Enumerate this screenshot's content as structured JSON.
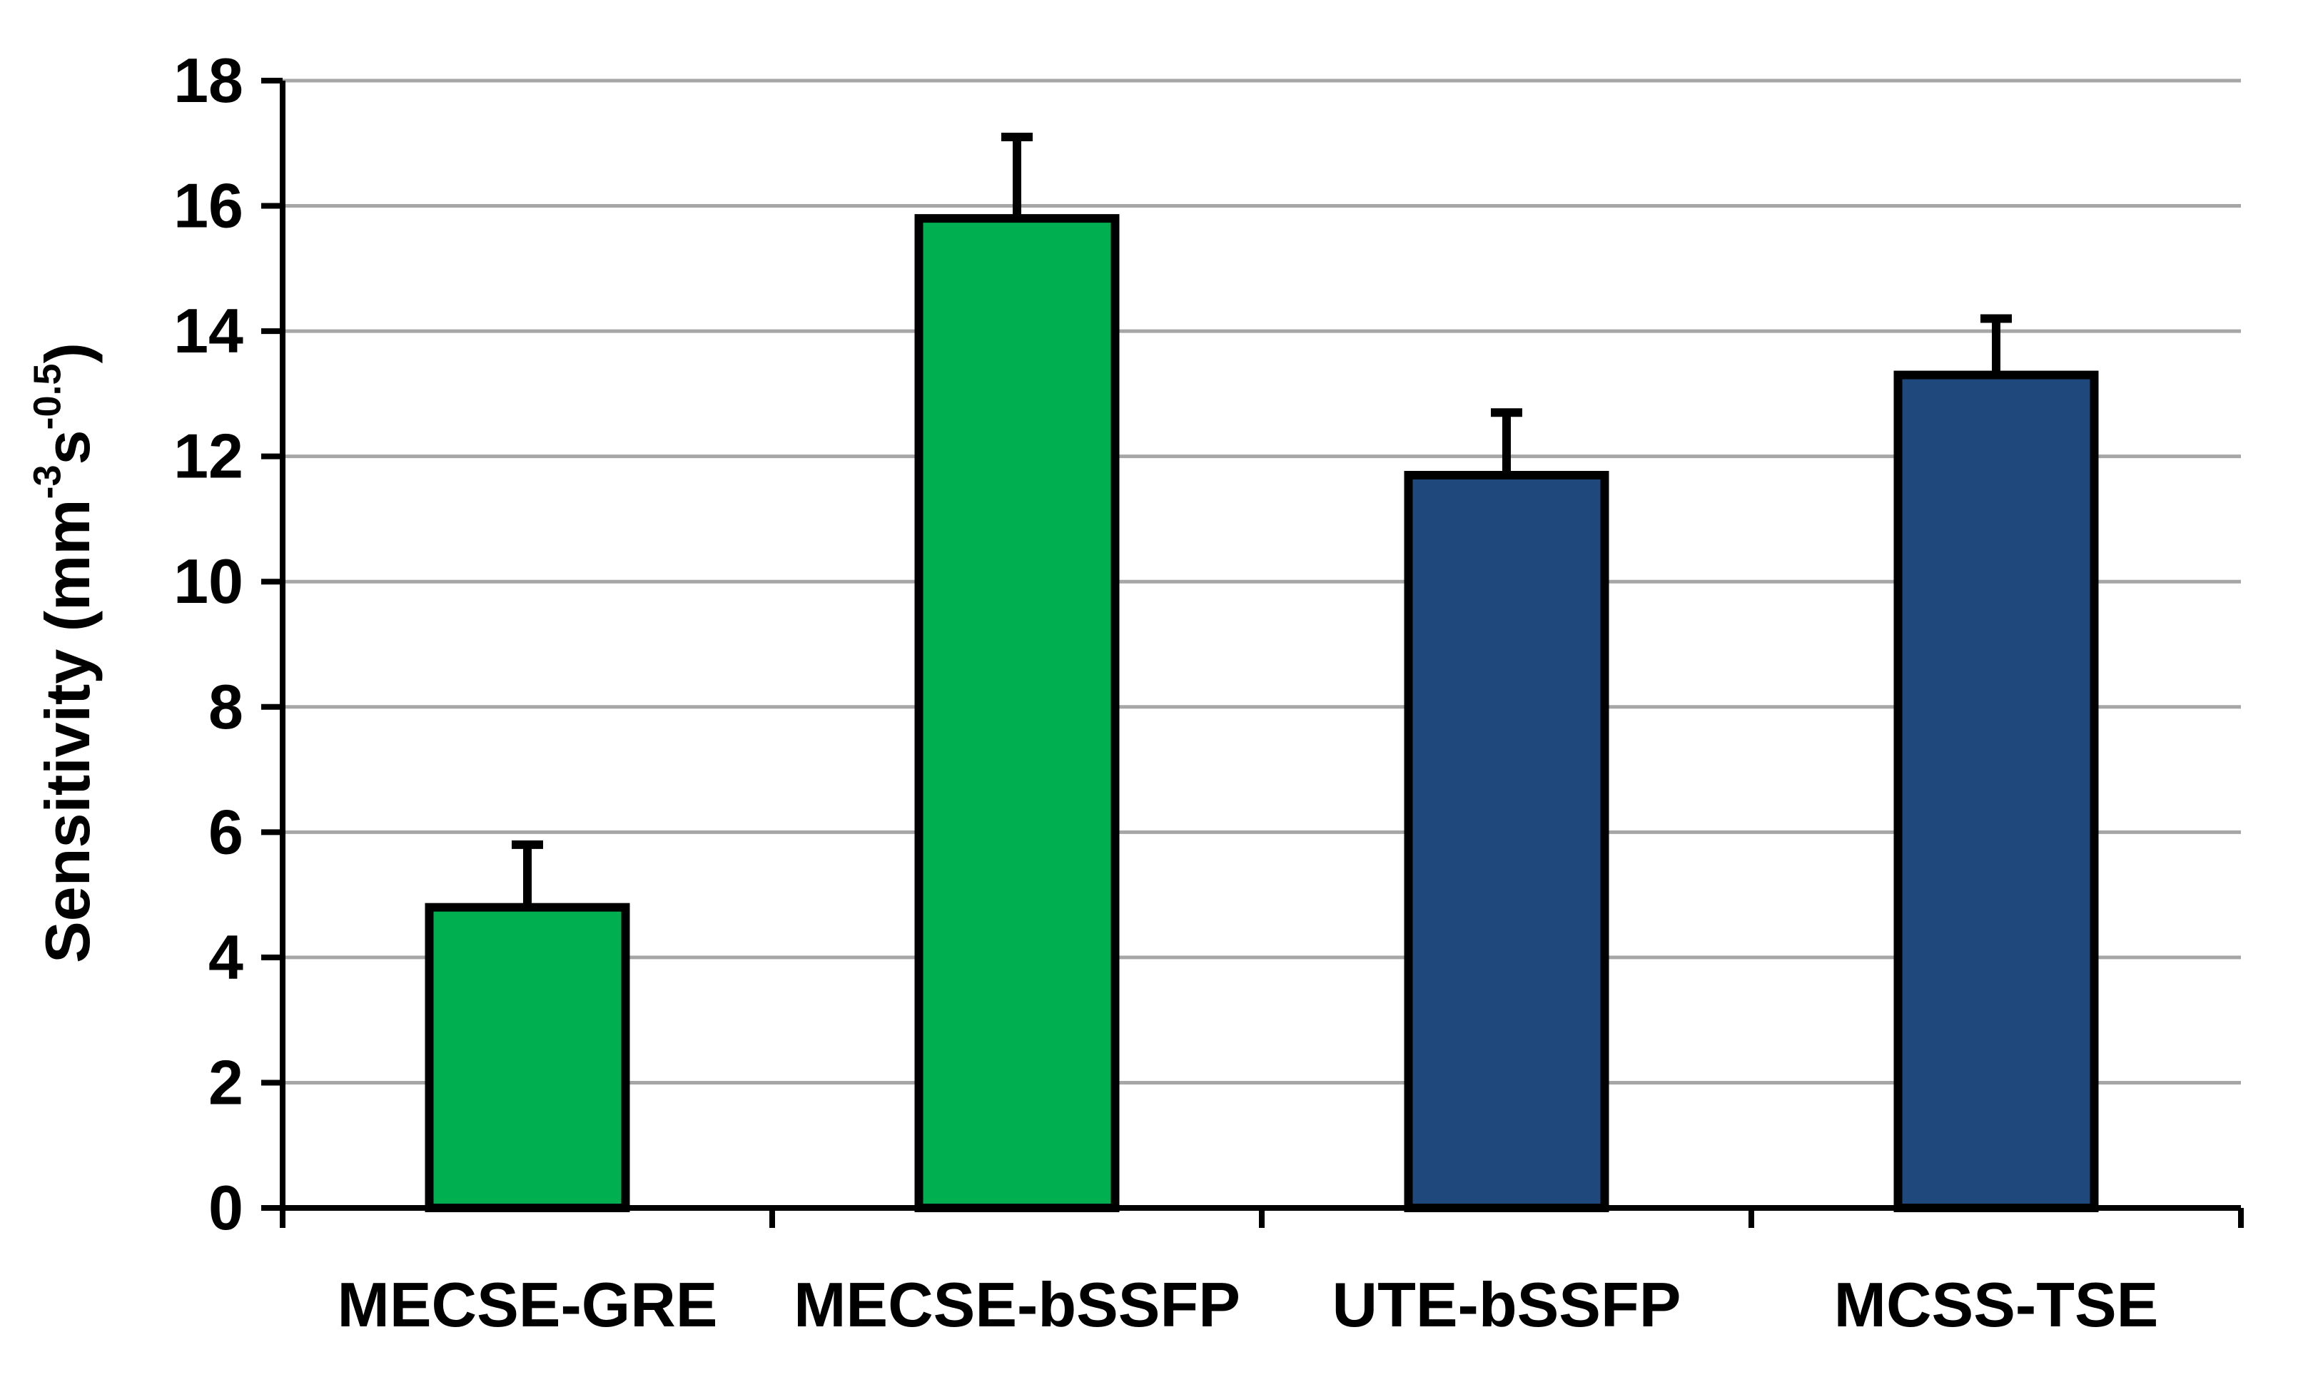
{
  "chart_data": {
    "type": "bar",
    "title": "",
    "xlabel": "",
    "ylabel": {
      "prefix": "Sensitivity (mm",
      "sup1": "-3",
      "mid": "s",
      "sup2": "-0.5",
      "suffix": ")"
    },
    "ylim": [
      0,
      18
    ],
    "ytick_step": 2,
    "yticks": [
      "0",
      "2",
      "4",
      "6",
      "8",
      "10",
      "12",
      "14",
      "16",
      "18"
    ],
    "grid": true,
    "categories": [
      "MECSE-GRE",
      "MECSE-bSSFP",
      "UTE-bSSFP",
      "MCSS-TSE"
    ],
    "values": [
      4.8,
      15.8,
      11.7,
      13.3
    ],
    "errors": [
      1.0,
      1.3,
      1.0,
      0.9
    ],
    "colors": [
      "#00B050",
      "#00B050",
      "#1F497D",
      "#1F497D"
    ],
    "gridline_color": "#A6A6A6"
  }
}
